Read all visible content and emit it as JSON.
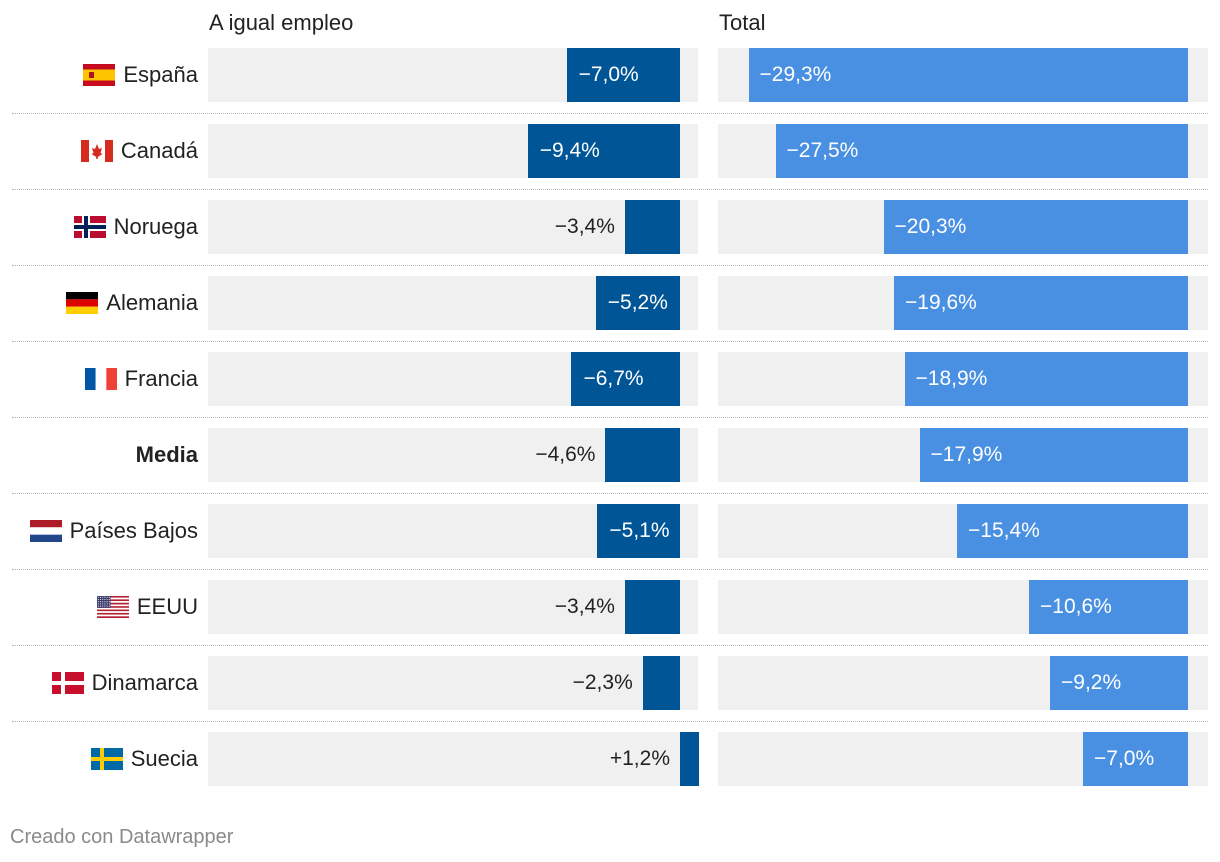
{
  "chart_data": {
    "type": "bar",
    "columns": [
      {
        "title": "A igual empleo",
        "domain": [
          -9.4,
          1.2
        ]
      },
      {
        "title": "Total",
        "domain": [
          -29.3,
          0
        ]
      }
    ],
    "colors": {
      "equal": "#005596",
      "total": "#4a90e2",
      "track": "#f0f0f0"
    },
    "rows": [
      {
        "label": "España",
        "flag": "spain-flag",
        "bold": false,
        "equal": -7.0,
        "equal_label": "−7,0%",
        "total": -29.3,
        "total_label": "−29,3%"
      },
      {
        "label": "Canadá",
        "flag": "canada-flag",
        "bold": false,
        "equal": -9.4,
        "equal_label": "−9,4%",
        "total": -27.5,
        "total_label": "−27,5%"
      },
      {
        "label": "Noruega",
        "flag": "norway-flag",
        "bold": false,
        "equal": -3.4,
        "equal_label": "−3,4%",
        "total": -20.3,
        "total_label": "−20,3%"
      },
      {
        "label": "Alemania",
        "flag": "germany-flag",
        "bold": false,
        "equal": -5.2,
        "equal_label": "−5,2%",
        "total": -19.6,
        "total_label": "−19,6%"
      },
      {
        "label": "Francia",
        "flag": "france-flag",
        "bold": false,
        "equal": -6.7,
        "equal_label": "−6,7%",
        "total": -18.9,
        "total_label": "−18,9%"
      },
      {
        "label": "Media",
        "flag": "",
        "bold": true,
        "equal": -4.6,
        "equal_label": "−4,6%",
        "total": -17.9,
        "total_label": "−17,9%"
      },
      {
        "label": "Países Bajos",
        "flag": "netherlands-flag",
        "bold": false,
        "equal": -5.1,
        "equal_label": "−5,1%",
        "total": -15.4,
        "total_label": "−15,4%"
      },
      {
        "label": "EEUU",
        "flag": "usa-flag",
        "bold": false,
        "equal": -3.4,
        "equal_label": "−3,4%",
        "total": -10.6,
        "total_label": "−10,6%"
      },
      {
        "label": "Dinamarca",
        "flag": "denmark-flag",
        "bold": false,
        "equal": -2.3,
        "equal_label": "−2,3%",
        "total": -9.2,
        "total_label": "−9,2%"
      },
      {
        "label": "Suecia",
        "flag": "sweden-flag",
        "bold": false,
        "equal": 1.2,
        "equal_label": "+1,2%",
        "total": -7.0,
        "total_label": "−7,0%"
      }
    ]
  },
  "footer": {
    "credit": "Creado con Datawrapper"
  }
}
